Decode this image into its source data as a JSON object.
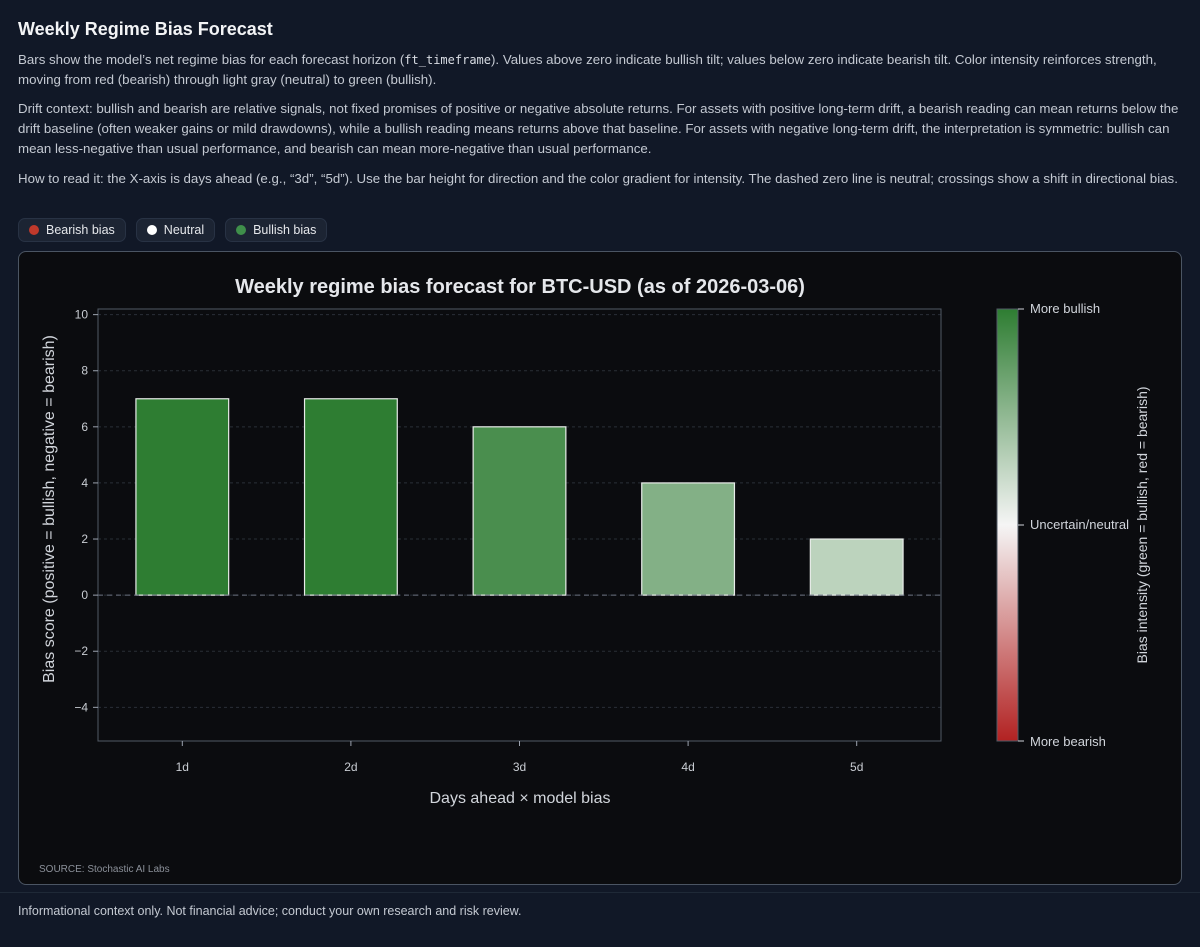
{
  "page": {
    "title": "Weekly Regime Bias Forecast",
    "intro_before_code": "Bars show the model’s net regime bias for each forecast horizon (",
    "intro_code": "ft_timeframe",
    "intro_after_code": "). Values above zero indicate bullish tilt; values below zero indicate bearish tilt. Color intensity reinforces strength, moving from red (bearish) through light gray (neutral) to green (bullish).",
    "drift_context": "Drift context: bullish and bearish are relative signals, not fixed promises of positive or negative absolute returns. For assets with positive long-term drift, a bearish reading can mean returns below the drift baseline (often weaker gains or mild drawdowns), while a bullish reading means returns above that baseline. For assets with negative long-term drift, the interpretation is symmetric: bullish can mean less-negative than usual performance, and bearish can mean more-negative than usual performance.",
    "how_to_read": "How to read it: the X-axis is days ahead (e.g., “3d”, “5d”). Use the bar height for direction and the color gradient for intensity. The dashed zero line is neutral; crossings show a shift in directional bias.",
    "footer": "Informational context only. Not financial advice; conduct your own research and risk review."
  },
  "legend": [
    {
      "label": "Bearish bias",
      "color": "#c0392b"
    },
    {
      "label": "Neutral",
      "color": "#ffffff"
    },
    {
      "label": "Bullish bias",
      "color": "#3f8f4a"
    }
  ],
  "chart_data": {
    "type": "bar",
    "title": "Weekly regime bias forecast for BTC-USD (as of 2026-03-06)",
    "xlabel": "Days ahead × model bias",
    "ylabel": "Bias score (positive = bullish, negative = bearish)",
    "categories": [
      "1d",
      "2d",
      "3d",
      "4d",
      "5d"
    ],
    "values": [
      7,
      7,
      6,
      4,
      2
    ],
    "ylim": [
      -5.2,
      10.2
    ],
    "yticks": [
      -4,
      -2,
      0,
      2,
      4,
      6,
      8,
      10
    ],
    "grid": true,
    "zero_line": "dashed",
    "colorbar": {
      "label": "Bias intensity (green = bullish, red = bearish)",
      "top_label": "More bullish",
      "mid_label": "Uncertain/neutral",
      "bottom_label": "More bearish",
      "colors": {
        "bearish": "#b22222",
        "neutral": "#f5f5f5",
        "bullish": "#2e7d32"
      }
    },
    "source": "SOURCE: Stochastic AI Labs"
  }
}
